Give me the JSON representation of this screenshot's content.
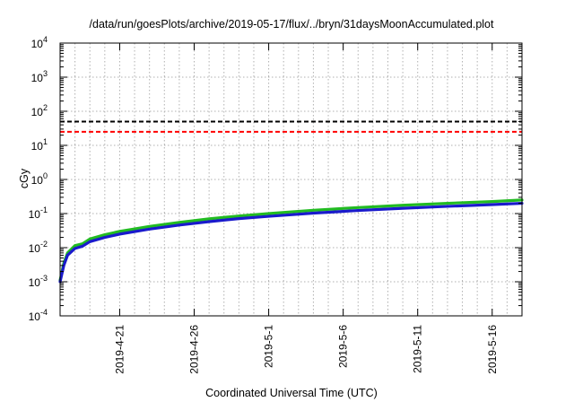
{
  "chart_data": {
    "type": "line",
    "title": "/data/run/goesPlots/archive/2019-05-17/flux/../bryn/31daysMoonAccumulated.plot",
    "xlabel": "Coordinated Universal Time (UTC)",
    "ylabel": "cGy",
    "y_scale": "log",
    "ylim": [
      0.0001,
      10000
    ],
    "xlim": [
      "2019-04-17",
      "2019-05-18"
    ],
    "grid": true,
    "y_ticks": [
      {
        "base": "10",
        "exp": "-4",
        "value": 0.0001
      },
      {
        "base": "10",
        "exp": "-3",
        "value": 0.001
      },
      {
        "base": "10",
        "exp": "-2",
        "value": 0.01
      },
      {
        "base": "10",
        "exp": "-1",
        "value": 0.1
      },
      {
        "base": "10",
        "exp": "0",
        "value": 1
      },
      {
        "base": "10",
        "exp": "1",
        "value": 10
      },
      {
        "base": "10",
        "exp": "2",
        "value": 100
      },
      {
        "base": "10",
        "exp": "3",
        "value": 1000
      },
      {
        "base": "10",
        "exp": "4",
        "value": 10000
      }
    ],
    "x_ticks": [
      "2019-4-21",
      "2019-4-26",
      "2019-5-1",
      "2019-5-6",
      "2019-5-11",
      "2019-5-16"
    ],
    "reference_lines": [
      {
        "value": 50,
        "color": "#000000",
        "style": "dashed"
      },
      {
        "value": 25,
        "color": "#ff0000",
        "style": "dashed"
      }
    ],
    "series": [
      {
        "color": "#22bb22",
        "x": [
          "2019-04-17",
          "2019-04-17T06",
          "2019-04-17T12",
          "2019-04-18",
          "2019-04-18T12",
          "2019-04-19",
          "2019-04-20",
          "2019-04-21",
          "2019-04-23",
          "2019-04-25",
          "2019-04-27",
          "2019-04-29",
          "2019-05-01",
          "2019-05-04",
          "2019-05-07",
          "2019-05-10",
          "2019-05-13",
          "2019-05-16",
          "2019-05-18"
        ],
        "y": [
          0.0011,
          0.0035,
          0.007,
          0.0115,
          0.013,
          0.018,
          0.024,
          0.03,
          0.042,
          0.055,
          0.07,
          0.085,
          0.1,
          0.125,
          0.15,
          0.175,
          0.2,
          0.225,
          0.25
        ]
      },
      {
        "color": "#1a1acc",
        "x": [
          "2019-04-17",
          "2019-04-17T06",
          "2019-04-17T12",
          "2019-04-18",
          "2019-04-18T12",
          "2019-04-19",
          "2019-04-20",
          "2019-04-21",
          "2019-04-23",
          "2019-04-25",
          "2019-04-27",
          "2019-04-29",
          "2019-05-01",
          "2019-05-04",
          "2019-05-07",
          "2019-05-10",
          "2019-05-13",
          "2019-05-16",
          "2019-05-18"
        ],
        "y": [
          0.001,
          0.003,
          0.006,
          0.0095,
          0.011,
          0.015,
          0.02,
          0.025,
          0.035,
          0.046,
          0.058,
          0.071,
          0.083,
          0.103,
          0.123,
          0.143,
          0.163,
          0.183,
          0.2
        ]
      }
    ]
  }
}
